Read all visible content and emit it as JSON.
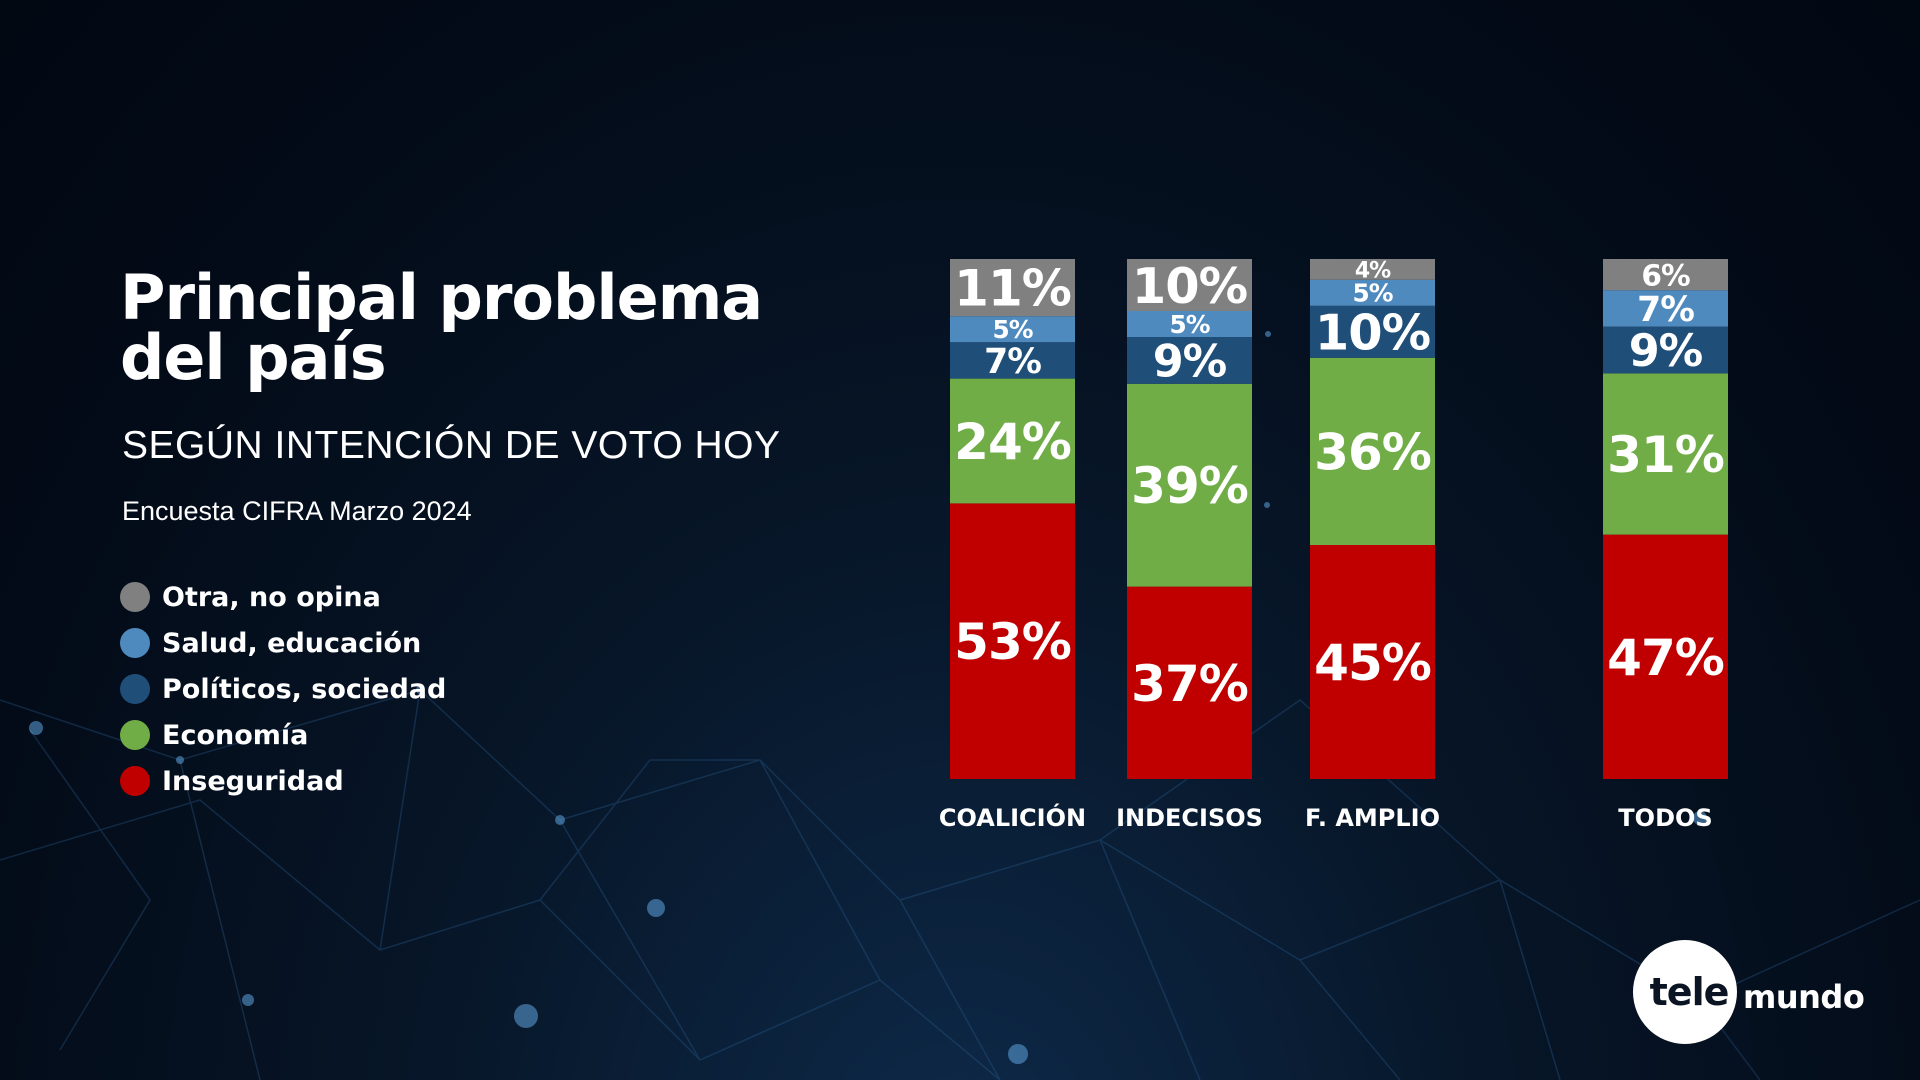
{
  "header": {
    "title_line1": "Principal problema",
    "title_line2": "del país",
    "subtitle": "SEGÚN INTENCIÓN DE VOTO HOY",
    "source": "Encuesta CIFRA Marzo 2024"
  },
  "legend": [
    {
      "label": "Otra, no opina",
      "color": "#808080"
    },
    {
      "label": "Salud, educación",
      "color": "#4f8abf"
    },
    {
      "label": "Políticos, sociedad",
      "color": "#1f4e79"
    },
    {
      "label": "Economía",
      "color": "#70ad47"
    },
    {
      "label": "Inseguridad",
      "color": "#c00000"
    }
  ],
  "logo": {
    "part1": "tele",
    "part2": "mundo"
  },
  "chart_data": {
    "type": "bar",
    "stacked": true,
    "title": "Principal problema del país",
    "subtitle": "SEGÚN INTENCIÓN DE VOTO HOY",
    "categories": [
      "COALICIÓN",
      "INDECISOS",
      "F. AMPLIO",
      "TODOS"
    ],
    "series": [
      {
        "name": "Inseguridad",
        "color": "#c00000",
        "values": [
          53,
          37,
          45,
          47
        ],
        "labels": [
          "53%",
          "37%",
          "45%",
          "47%"
        ]
      },
      {
        "name": "Economía",
        "color": "#70ad47",
        "values": [
          24,
          39,
          36,
          31
        ],
        "labels": [
          "24%",
          "39%",
          "36%",
          "31%"
        ]
      },
      {
        "name": "Políticos, sociedad",
        "color": "#1f4e79",
        "values": [
          7,
          9,
          10,
          9
        ],
        "labels": [
          "7%",
          "9%",
          "10%",
          "9%"
        ]
      },
      {
        "name": "Salud, educación",
        "color": "#4f8abf",
        "values": [
          5,
          5,
          5,
          7
        ],
        "labels": [
          "5%",
          "5%",
          "5%",
          "7%"
        ]
      },
      {
        "name": "Otra, no opina",
        "color": "#808080",
        "values": [
          11,
          10,
          4,
          6
        ],
        "labels": [
          "11%",
          "10%",
          "4%",
          "6%"
        ]
      }
    ],
    "ylim": [
      0,
      100
    ],
    "unit": "%",
    "legend_position": "left",
    "grid": false
  }
}
